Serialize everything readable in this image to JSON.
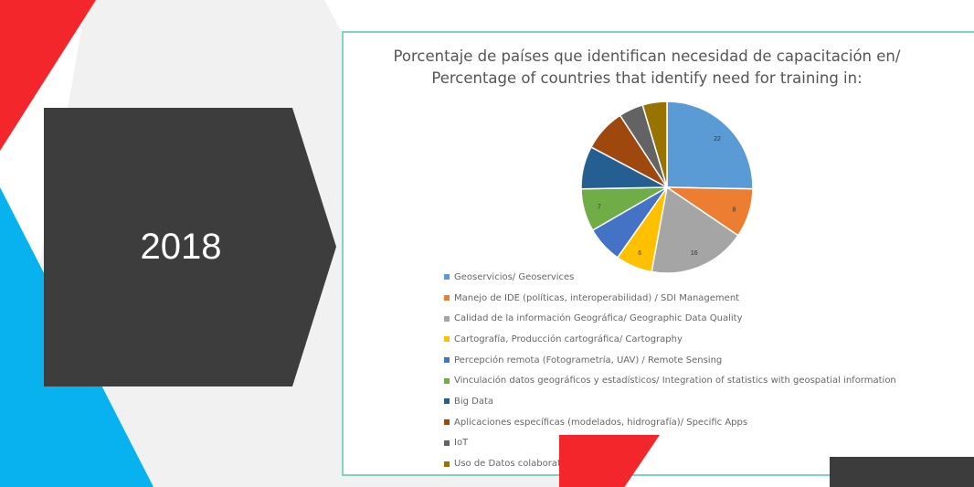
{
  "slide": {
    "year": "2018",
    "colors": {
      "red": "#f2262b",
      "blue": "#07b2ef",
      "dark": "#3d3d3d",
      "border": "#7fd3bf"
    }
  },
  "chart_data": {
    "type": "pie",
    "title": "Porcentaje de países que identifican necesidad de capacitación en/ Percentage of countries that identify need for training in:",
    "title_lines": [
      "Porcentaje de países que identifican necesidad de capacitación en/",
      "Percentage of countries that identify need for training in:"
    ],
    "legend_position": "bottom",
    "categories": [
      "Geoservicios/ Geoservices",
      "Manejo de IDE (políticas, interoperabilidad) / SDI Management",
      "Calidad de la información Geográfica/ Geographic Data Quality",
      "Cartografía, Producción cartográfica/ Cartography",
      "Percepción remota (Fotogrametría, UAV) / Remote Sensing",
      "Vinculación datos geográficos y estadísticos/ Integration of statistics with geospatial information",
      "Big Data",
      "Aplicaciones específicas (modelados, hidrografía)/ Specific Apps",
      "IoT",
      "Uso de Datos colaborat"
    ],
    "values": [
      22,
      8,
      16,
      6,
      6,
      7,
      7,
      7,
      4,
      4
    ],
    "data_labels": [
      "22",
      "8",
      "16",
      "6",
      "",
      "7",
      "",
      "",
      "",
      ""
    ],
    "colors": [
      "#5b9bd5",
      "#ed7d31",
      "#a5a5a5",
      "#ffc000",
      "#4472c4",
      "#70ad47",
      "#255e91",
      "#9e480e",
      "#636363",
      "#997300"
    ]
  }
}
